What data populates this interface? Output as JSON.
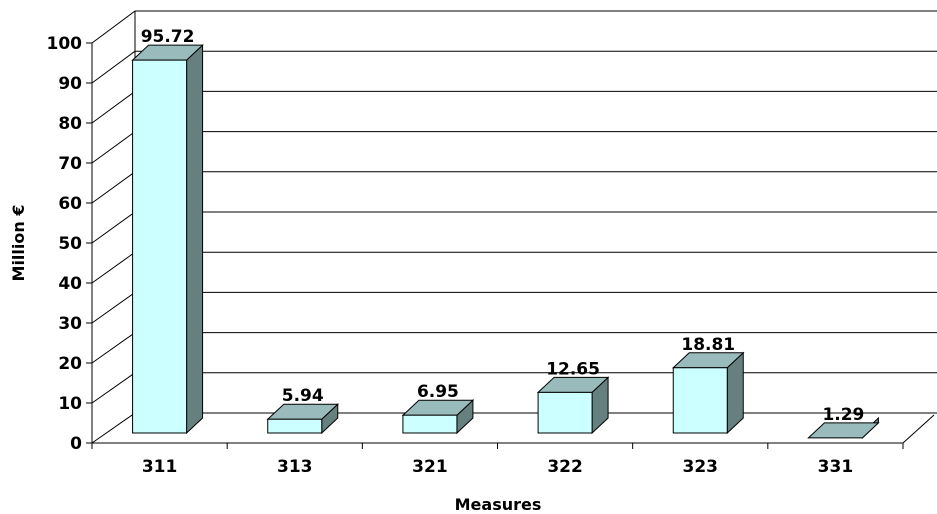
{
  "chart_data": {
    "type": "bar",
    "style": "3d-column",
    "categories": [
      "311",
      "313",
      "321",
      "322",
      "323",
      "331"
    ],
    "values": [
      95.72,
      5.94,
      6.95,
      12.65,
      18.81,
      1.29
    ],
    "value_labels": [
      "95.72",
      "5.94",
      "6.95",
      "12.65",
      "18.81",
      "1.29"
    ],
    "xlabel": "Measures",
    "ylabel": "Million €",
    "ylim": [
      0,
      100
    ],
    "yticks": [
      0,
      10,
      20,
      30,
      40,
      50,
      60,
      70,
      80,
      90,
      100
    ],
    "grid": true,
    "legend": "none",
    "colors": {
      "bar_front": "#ccffff",
      "bar_top": "#99bbbb",
      "bar_side": "#668080",
      "gridline": "#000000"
    }
  }
}
